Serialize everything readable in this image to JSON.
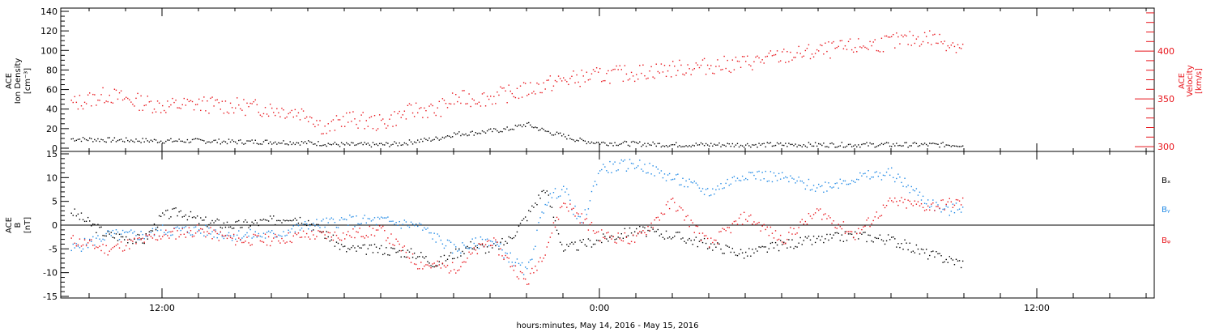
{
  "xlabel": "hours:minutes, May 14, 2016 - May 15, 2016",
  "x_ticks": [
    "12:00",
    "0:00",
    "12:00"
  ],
  "colors": {
    "black": "#000000",
    "red": "#e8141b",
    "blue": "#1e88e5"
  },
  "chart_data": [
    {
      "type": "scatter",
      "panel": "top",
      "ylabel_left": [
        "ACE",
        "Ion Density",
        "[cm⁻³]"
      ],
      "ylabel_right": [
        "ACE",
        "Velocity",
        "[km/s]"
      ],
      "ylim_left": [
        0,
        140
      ],
      "yticks_left": [
        "0",
        "20",
        "40",
        "60",
        "80",
        "100",
        "120",
        "140"
      ],
      "ylim_right": [
        295,
        445
      ],
      "yticks_right": [
        "300",
        "350",
        "400"
      ],
      "x_unit": "hours from 12:00 May 14, 2016",
      "series": [
        {
          "color": "black",
          "axis": "left",
          "x": [
            -2.5,
            -1.5,
            0,
            1,
            2,
            3,
            4,
            5,
            6,
            6.5,
            7,
            7.5,
            8,
            8.5,
            9,
            9.5,
            10,
            10.5,
            11,
            11.5,
            12,
            13,
            14,
            15,
            16,
            17,
            18,
            19,
            20,
            21,
            22
          ],
          "y": [
            10,
            9,
            8,
            8,
            7,
            7,
            6,
            4,
            4,
            5,
            8,
            10,
            15,
            16,
            18,
            20,
            25,
            18,
            13,
            8,
            6,
            5,
            4,
            4,
            4,
            4,
            4,
            4,
            4,
            4,
            4
          ]
        },
        {
          "color": "red",
          "axis": "right",
          "x": [
            -2.5,
            -1.5,
            -1,
            0,
            1,
            2,
            3,
            4,
            4.5,
            5,
            6,
            7,
            7.5,
            8,
            9,
            10,
            11,
            12,
            13,
            14,
            15,
            16,
            17,
            18,
            19,
            20,
            21,
            22
          ],
          "y": [
            345,
            355,
            350,
            343,
            345,
            343,
            340,
            335,
            318,
            330,
            325,
            340,
            338,
            350,
            352,
            360,
            370,
            375,
            378,
            382,
            385,
            388,
            395,
            400,
            405,
            410,
            415,
            405
          ]
        }
      ]
    },
    {
      "type": "scatter",
      "panel": "bottom",
      "ylabel_left": [
        "ACE",
        "B",
        "[nT]"
      ],
      "ylim": [
        -15,
        15
      ],
      "yticks": [
        "-15",
        "-10",
        "-5",
        "0",
        "5",
        "10",
        "15"
      ],
      "x_unit": "hours from 12:00 May 14, 2016",
      "legend": [
        "Bₓ",
        "Bᵧ",
        "Bᵩ"
      ],
      "series": [
        {
          "name": "Bx",
          "color": "black",
          "x": [
            -2.5,
            -1.5,
            -0.5,
            0,
            0.5,
            1,
            2,
            3,
            3.5,
            4,
            5,
            6,
            7,
            7.5,
            8,
            8.5,
            9,
            9.5,
            10,
            10.5,
            11,
            12,
            13,
            14,
            15,
            16,
            17,
            18,
            19,
            20,
            21,
            22
          ],
          "y": [
            3,
            -2,
            -3,
            2,
            3,
            1,
            0,
            1,
            2,
            1,
            -5,
            -5,
            -6,
            -8,
            -6,
            -4,
            -5,
            -3,
            2,
            8,
            -5,
            -3,
            -1,
            -2,
            -4,
            -6,
            -4,
            -3,
            -2,
            -3,
            -6,
            -8
          ]
        },
        {
          "name": "By",
          "color": "blue",
          "x": [
            -2.5,
            -1.5,
            -0.5,
            0,
            1,
            2,
            3,
            4,
            5,
            6,
            7,
            8,
            9,
            10,
            10.5,
            11,
            11.5,
            12,
            13,
            14,
            15,
            16,
            17,
            18,
            19,
            20,
            21,
            21.5,
            22
          ],
          "y": [
            -5,
            -2,
            -2,
            -1,
            -1,
            -2,
            -2,
            0,
            1,
            1,
            0,
            -5,
            -3,
            -10,
            5,
            8,
            0,
            12,
            13,
            10,
            7,
            11,
            10,
            8,
            10,
            11,
            5,
            3,
            4
          ]
        },
        {
          "name": "Bz",
          "color": "red",
          "x": [
            -2.5,
            -1.5,
            -0.5,
            0,
            1,
            2,
            3,
            4,
            5,
            6,
            7,
            8,
            9,
            10,
            10.5,
            11,
            12,
            13,
            14,
            15,
            16,
            17,
            18,
            19,
            20,
            21,
            22
          ],
          "y": [
            -3,
            -5,
            -3,
            -2,
            -1,
            -3,
            -3,
            -2,
            -2,
            -1,
            -8,
            -9,
            -3,
            -12,
            -5,
            5,
            -2,
            -3,
            5,
            -4,
            2,
            -3,
            3,
            -2,
            5,
            4,
            5
          ]
        }
      ]
    }
  ]
}
